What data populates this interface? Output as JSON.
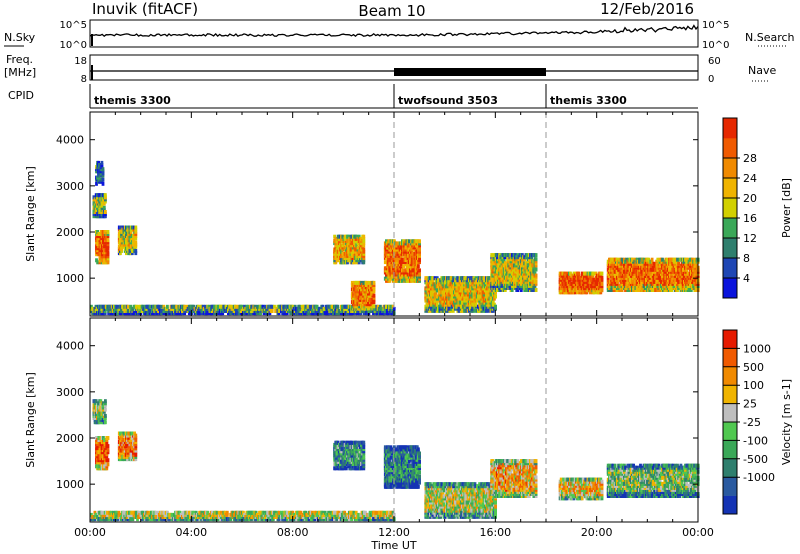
{
  "header": {
    "radar_title": "Inuvik (fitACF)",
    "beam": "Beam 10",
    "date": "12/Feb/2016"
  },
  "top_panels": {
    "nsky": {
      "left_label": "N.Sky",
      "right_label": "N.Search",
      "left_ticks": [
        "10^5",
        "10^0"
      ],
      "right_ticks": [
        "10^5",
        "10^0"
      ]
    },
    "freq": {
      "left_label_line1": "Freq.",
      "left_label_line2": "[MHz]",
      "right_label": "Nave",
      "left_ticks": [
        "18",
        "8"
      ],
      "right_ticks": [
        "60",
        "0"
      ]
    },
    "cpid": {
      "label": "CPID",
      "segments": [
        {
          "name": "themis 3300",
          "start_h": 0.0,
          "end_h": 12.0
        },
        {
          "name": "twofsound 3503",
          "start_h": 12.0,
          "end_h": 18.0
        },
        {
          "name": "themis 3300",
          "start_h": 18.0,
          "end_h": 24.0
        }
      ]
    }
  },
  "chart_data": [
    {
      "type": "heatmap",
      "quantity": "Power",
      "ylabel": "Slant Range [km]",
      "xlim": [
        0,
        24
      ],
      "ylim": [
        180,
        4600
      ],
      "yticks": [
        1000,
        2000,
        3000,
        4000
      ],
      "colorbar": {
        "label": "Power [dB]",
        "ticks": [
          "4",
          "8",
          "12",
          "16",
          "20",
          "24",
          "28"
        ],
        "colors": [
          "#0a14dc",
          "#1e46b4",
          "#2f7f6e",
          "#3aa858",
          "#d2d000",
          "#f0b400",
          "#f08a00",
          "#f05a00",
          "#e62800"
        ]
      },
      "echo_regions": [
        {
          "x": [
            0.2,
            0.7
          ],
          "y": [
            1300,
            2000
          ],
          "level": 0.85
        },
        {
          "x": [
            0.1,
            0.6
          ],
          "y": [
            2300,
            2800
          ],
          "level": 0.45
        },
        {
          "x": [
            0.2,
            0.5
          ],
          "y": [
            3000,
            3500
          ],
          "level": 0.25
        },
        {
          "x": [
            1.1,
            1.8
          ],
          "y": [
            1500,
            2100
          ],
          "level": 0.55
        },
        {
          "x": [
            0.0,
            12.0
          ],
          "y": [
            200,
            380
          ],
          "level": 0.35
        },
        {
          "x": [
            9.6,
            10.8
          ],
          "y": [
            1300,
            1900
          ],
          "level": 0.65
        },
        {
          "x": [
            10.3,
            11.2
          ],
          "y": [
            300,
            900
          ],
          "level": 0.75
        },
        {
          "x": [
            11.6,
            13.0
          ],
          "y": [
            900,
            1800
          ],
          "level": 0.8
        },
        {
          "x": [
            13.2,
            16.0
          ],
          "y": [
            250,
            1000
          ],
          "level": 0.6
        },
        {
          "x": [
            15.8,
            17.6
          ],
          "y": [
            700,
            1500
          ],
          "level": 0.55
        },
        {
          "x": [
            18.5,
            20.2
          ],
          "y": [
            650,
            1100
          ],
          "level": 0.9
        },
        {
          "x": [
            20.4,
            24.0
          ],
          "y": [
            700,
            1400
          ],
          "level": 0.8
        }
      ]
    },
    {
      "type": "heatmap",
      "quantity": "Velocity",
      "ylabel": "Slant Range [km]",
      "xlabel": "Time UT",
      "xlim": [
        0,
        24
      ],
      "ylim": [
        180,
        4600
      ],
      "yticks": [
        1000,
        2000,
        3000,
        4000
      ],
      "xticks": [
        "00:00",
        "04:00",
        "08:00",
        "12:00",
        "16:00",
        "20:00",
        "00:00"
      ],
      "colorbar": {
        "label": "Velocity [m s-1]",
        "ticks": [
          "1000",
          "500",
          "100",
          "25",
          "-25",
          "-100",
          "-500",
          "-1000"
        ],
        "colors": [
          "#1433b4",
          "#2a5aa0",
          "#2f7f6e",
          "#3aa858",
          "#50c850",
          "#bebebe",
          "#f0b400",
          "#f08a00",
          "#f05a00",
          "#e61a00"
        ]
      },
      "echo_regions": [
        {
          "x": [
            0.2,
            0.7
          ],
          "y": [
            1300,
            2000
          ],
          "level": 0.85
        },
        {
          "x": [
            0.1,
            0.6
          ],
          "y": [
            2300,
            2800
          ],
          "level": 0.5
        },
        {
          "x": [
            1.1,
            1.8
          ],
          "y": [
            1500,
            2100
          ],
          "level": 0.75
        },
        {
          "x": [
            0.0,
            12.0
          ],
          "y": [
            200,
            380
          ],
          "level": 0.55
        },
        {
          "x": [
            9.6,
            10.8
          ],
          "y": [
            1300,
            1900
          ],
          "level": 0.3
        },
        {
          "x": [
            11.6,
            13.0
          ],
          "y": [
            900,
            1800
          ],
          "level": 0.25
        },
        {
          "x": [
            13.2,
            16.0
          ],
          "y": [
            250,
            1000
          ],
          "level": 0.55
        },
        {
          "x": [
            15.8,
            17.6
          ],
          "y": [
            700,
            1500
          ],
          "level": 0.7
        },
        {
          "x": [
            18.5,
            20.2
          ],
          "y": [
            650,
            1100
          ],
          "level": 0.65
        },
        {
          "x": [
            20.4,
            24.0
          ],
          "y": [
            700,
            1400
          ],
          "level": 0.45
        }
      ]
    }
  ]
}
